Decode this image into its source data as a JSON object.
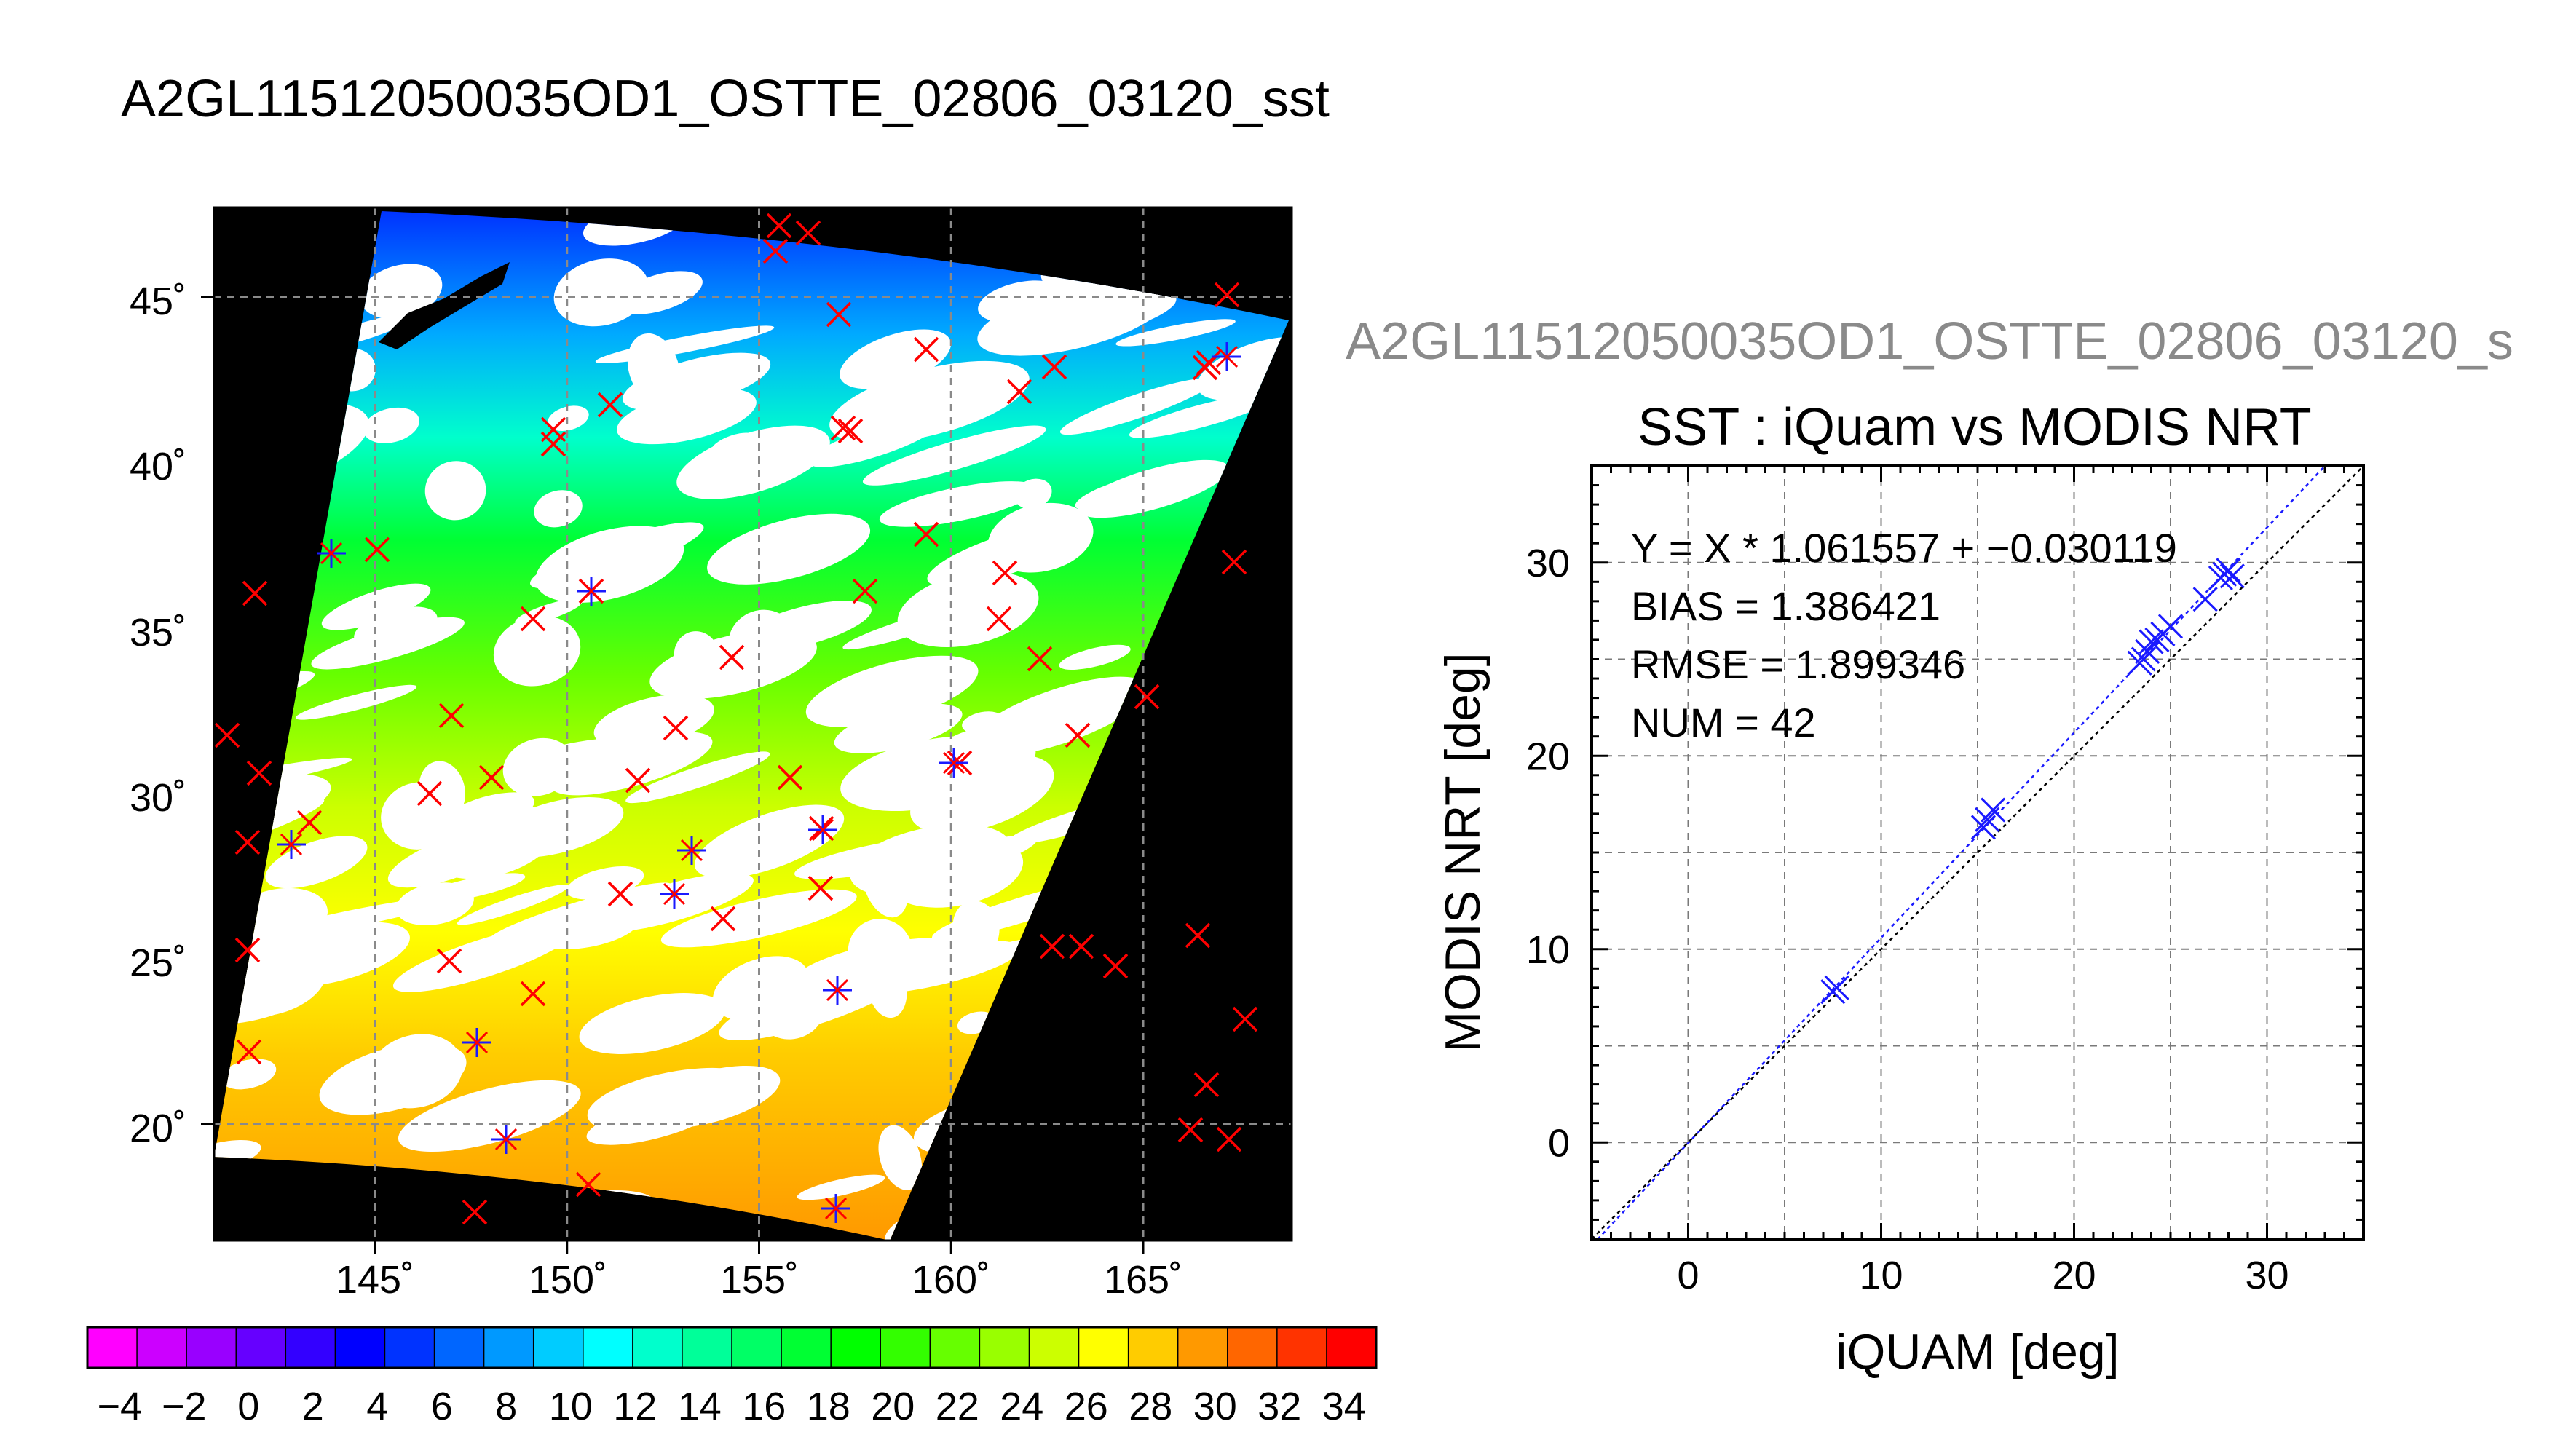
{
  "title": "A2GL11512050035OD1_OSTTE_02806_03120_sst",
  "right_title": "A2GL11512050035OD1_OSTTE_02806_03120_s",
  "map": {
    "lon_ticks": [
      "145˚",
      "150˚",
      "155˚",
      "160˚",
      "165˚"
    ],
    "lat_ticks": [
      "20˚",
      "25˚",
      "30˚",
      "35˚",
      "40˚",
      "45˚"
    ]
  },
  "colorbar": {
    "labels": [
      "−4",
      "−2",
      "0",
      "2",
      "4",
      "6",
      "8",
      "10",
      "12",
      "14",
      "16",
      "18",
      "20",
      "22",
      "24",
      "26",
      "28",
      "30",
      "32",
      "34"
    ],
    "colors": [
      "#ff00ff",
      "#cc00ff",
      "#9900ff",
      "#6600ff",
      "#3300ff",
      "#0000ff",
      "#0033ff",
      "#0066ff",
      "#0099ff",
      "#00ccff",
      "#00ffff",
      "#00ffcc",
      "#00ff99",
      "#00ff66",
      "#00ff33",
      "#00ff00",
      "#33ff00",
      "#66ff00",
      "#99ff00",
      "#ccff00",
      "#ffff00",
      "#ffcc00",
      "#ff9900",
      "#ff6600",
      "#ff3300",
      "#ff0000"
    ]
  },
  "chart_data": {
    "type": "scatter",
    "title": "SST : iQuam vs MODIS NRT",
    "xlabel": "iQUAM [deg]",
    "ylabel": "MODIS NRT [deg]",
    "xlim": [
      -5,
      35
    ],
    "ylim": [
      -5,
      35
    ],
    "xticks": [
      0,
      10,
      20,
      30
    ],
    "yticks": [
      0,
      10,
      20,
      30
    ],
    "grid": true,
    "stats": {
      "fit": "Y = X * 1.061557 + −0.030119",
      "bias": "BIAS = 1.386421",
      "rmse": "RMSE = 1.899346",
      "num": "NUM = 42"
    },
    "fit_line": {
      "slope": 1.061557,
      "intercept": -0.030119
    },
    "points": [
      {
        "x": 7.5,
        "y": 7.8
      },
      {
        "x": 7.7,
        "y": 8.0
      },
      {
        "x": 15.3,
        "y": 16.3
      },
      {
        "x": 15.5,
        "y": 16.7
      },
      {
        "x": 15.8,
        "y": 17.2
      },
      {
        "x": 23.4,
        "y": 24.8
      },
      {
        "x": 23.6,
        "y": 25.0
      },
      {
        "x": 23.8,
        "y": 25.4
      },
      {
        "x": 24.0,
        "y": 25.9
      },
      {
        "x": 24.3,
        "y": 26.0
      },
      {
        "x": 24.6,
        "y": 26.3
      },
      {
        "x": 25.0,
        "y": 26.7
      },
      {
        "x": 26.8,
        "y": 28.1
      },
      {
        "x": 27.6,
        "y": 29.2
      },
      {
        "x": 27.8,
        "y": 29.4
      },
      {
        "x": 28.0,
        "y": 29.6
      },
      {
        "x": 28.2,
        "y": 29.3
      }
    ]
  }
}
